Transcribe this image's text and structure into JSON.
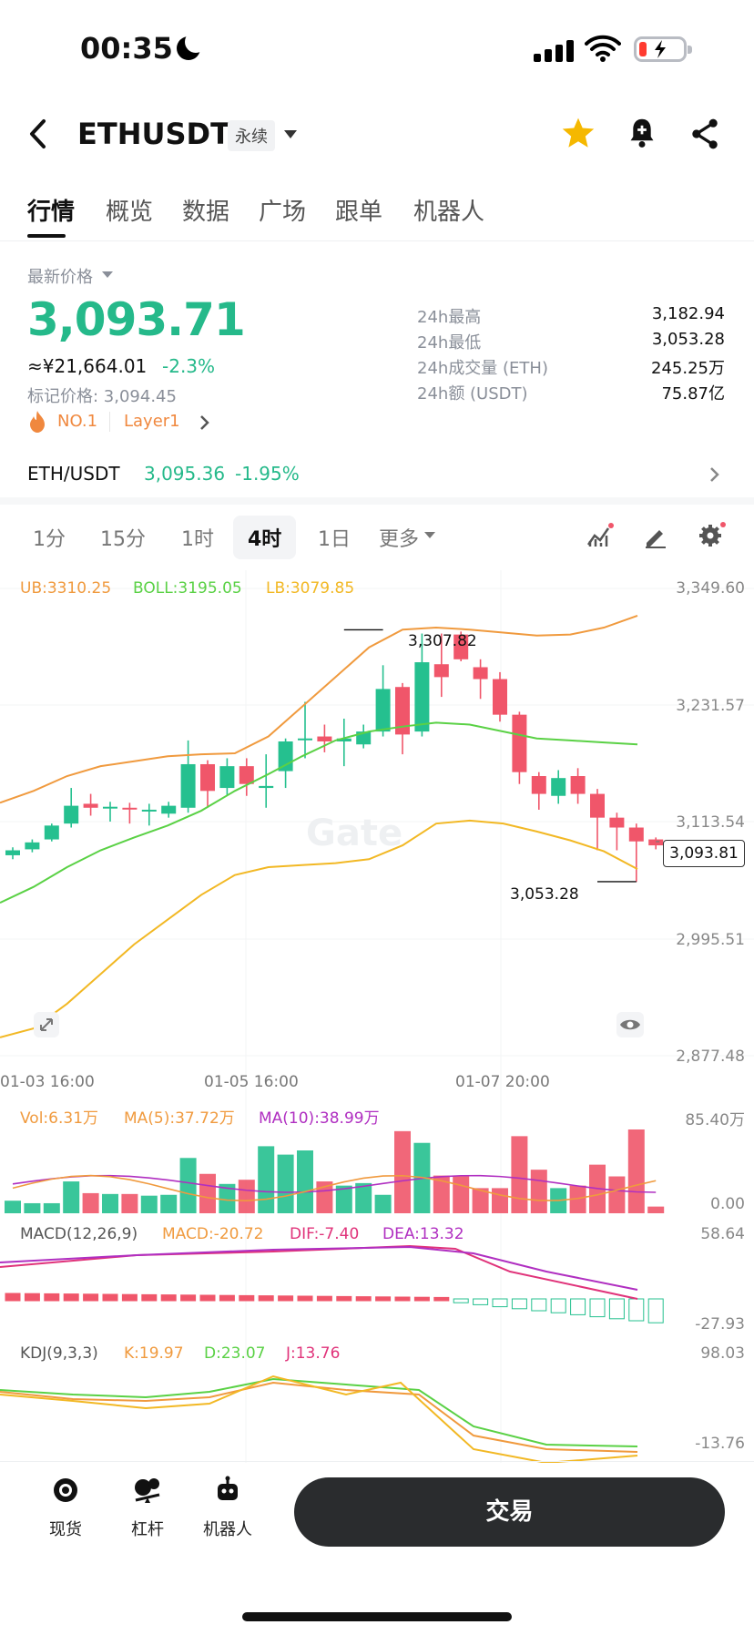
{
  "status": {
    "time": "00:35"
  },
  "header": {
    "pair": "ETHUSDT",
    "contract_tag": "永续"
  },
  "tabs": [
    "行情",
    "概览",
    "数据",
    "广场",
    "跟单",
    "机器人"
  ],
  "price": {
    "label": "最新价格",
    "last": "3,093.71",
    "cny": "≈¥21,664.01",
    "change": "-2.3%",
    "mark": "标记价格: 3,094.45",
    "rank": "NO.1",
    "sector": "Layer1"
  },
  "stats": [
    {
      "label": "24h最高",
      "value": "3,182.94"
    },
    {
      "label": "24h最低",
      "value": "3,053.28"
    },
    {
      "label": "24h成交量 (ETH)",
      "value": "245.25万"
    },
    {
      "label": "24h额 (USDT)",
      "value": "75.87亿"
    }
  ],
  "spot": {
    "pair": "ETH/USDT",
    "price": "3,095.36",
    "change": "-1.95%"
  },
  "timeframes": [
    "1分",
    "15分",
    "1时",
    "4时",
    "1日",
    "更多"
  ],
  "active_timeframe": "4时",
  "chart": {
    "boll": {
      "ub": "UB:3310.25",
      "mid": "BOLL:3195.05",
      "lb": "LB:3079.85"
    },
    "price_axis": [
      "3,349.60",
      "3,231.57",
      "3,113.54",
      "2,995.51",
      "2,877.48"
    ],
    "high_marker": "3,307.82",
    "low_marker": "3,053.28",
    "current_price": "3,093.81",
    "time_axis": [
      "01-03 16:00",
      "01-05 16:00",
      "01-07 20:00"
    ],
    "watermark": "Gate",
    "volume": {
      "vol": "Vol:6.31万",
      "ma5": "MA(5):37.72万",
      "ma10": "MA(10):38.99万",
      "max": "85.40万",
      "min": "0.00"
    },
    "macd": {
      "name": "MACD(12,26,9)",
      "macd": "MACD:-20.72",
      "dif": "DIF:-7.40",
      "dea": "DEA:13.32",
      "max": "58.64",
      "min": "-27.93"
    },
    "kdj": {
      "name": "KDJ(9,3,3)",
      "k": "K:19.97",
      "d": "D:23.07",
      "j": "J:13.76",
      "max": "98.03",
      "min": "-13.76"
    },
    "colors": {
      "up": "#25c08f",
      "down": "#f0566a",
      "ub": "#f09a3e",
      "boll": "#5ad145",
      "lb": "#f2b824"
    }
  },
  "bottom_nav": [
    "现货",
    "杠杆",
    "机器人"
  ],
  "trade_button": "交易"
}
